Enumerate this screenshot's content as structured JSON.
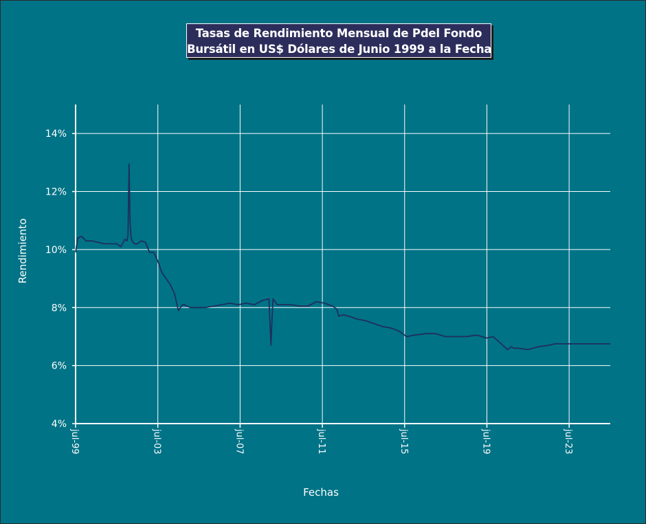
{
  "chart_data": {
    "type": "line",
    "title_lines": [
      "Tasas de Rendimiento Mensual de Pdel Fondo",
      "Bursátil en US$ Dólares de Junio 1999 a la Fecha"
    ],
    "xlabel": "Fechas",
    "ylabel": "Rendimiento",
    "x_ticks": [
      "jul-99",
      "jul-03",
      "jul-07",
      "jul-11",
      "jul-15",
      "jul-19",
      "jul-23"
    ],
    "y_ticks": [
      "4%",
      "6%",
      "8%",
      "10%",
      "12%",
      "14%"
    ],
    "ylim": [
      4,
      15
    ],
    "xlim": [
      1999.5,
      2025.5
    ],
    "grid": true,
    "series_color": "#1f2f5c",
    "background_color": "#007386",
    "title_box_color": "#2d2d5c",
    "series": [
      {
        "x": [
          1999.5,
          1999.6,
          1999.8,
          2000.0,
          2000.3,
          2000.6,
          2000.9,
          2001.2,
          2001.5,
          2001.7,
          2001.9,
          2002.0,
          2002.05,
          2002.1,
          2002.15,
          2002.2,
          2002.25,
          2002.35,
          2002.5,
          2002.7,
          2002.9,
          2003.1,
          2003.3,
          2003.5,
          2003.7,
          2003.9,
          2004.1,
          2004.3,
          2004.5,
          2004.7,
          2004.8,
          2004.9,
          2005.1,
          2005.4,
          2005.8,
          2006.2,
          2006.6,
          2007.0,
          2007.4,
          2007.8,
          2008.2,
          2008.6,
          2008.9,
          2009.0,
          2009.05,
          2009.1,
          2009.2,
          2009.3,
          2009.6,
          2010.0,
          2010.4,
          2010.8,
          2011.2,
          2011.6,
          2012.0,
          2012.2,
          2012.3,
          2012.5,
          2012.8,
          2013.2,
          2013.6,
          2014.0,
          2014.4,
          2014.8,
          2015.2,
          2015.6,
          2016.0,
          2016.5,
          2017.0,
          2017.5,
          2018.0,
          2018.5,
          2019.0,
          2019.5,
          2019.8,
          2020.2,
          2020.5,
          2020.7,
          2020.8,
          2021.0,
          2021.5,
          2022.0,
          2022.5,
          2022.8,
          2023.0,
          2023.5,
          2024.0,
          2024.5,
          2025.0,
          2025.5
        ],
        "y": [
          9.9,
          10.4,
          10.45,
          10.3,
          10.3,
          10.25,
          10.2,
          10.2,
          10.2,
          10.1,
          10.35,
          10.3,
          10.5,
          12.95,
          10.9,
          10.4,
          10.3,
          10.2,
          10.2,
          10.3,
          10.25,
          9.9,
          9.9,
          9.6,
          9.2,
          9.0,
          8.8,
          8.5,
          7.9,
          8.1,
          8.1,
          8.05,
          8.0,
          8.0,
          8.0,
          8.05,
          8.1,
          8.15,
          8.1,
          8.15,
          8.1,
          8.25,
          8.3,
          6.7,
          7.6,
          8.3,
          8.2,
          8.1,
          8.1,
          8.1,
          8.05,
          8.05,
          8.2,
          8.15,
          8.05,
          7.95,
          7.7,
          7.75,
          7.7,
          7.6,
          7.55,
          7.45,
          7.35,
          7.3,
          7.2,
          7.0,
          7.05,
          7.1,
          7.1,
          7.0,
          7.0,
          7.0,
          7.05,
          6.95,
          7.0,
          6.75,
          6.55,
          6.65,
          6.6,
          6.6,
          6.55,
          6.65,
          6.7,
          6.75,
          6.75,
          6.75,
          6.75,
          6.75,
          6.75,
          6.75
        ]
      }
    ]
  }
}
